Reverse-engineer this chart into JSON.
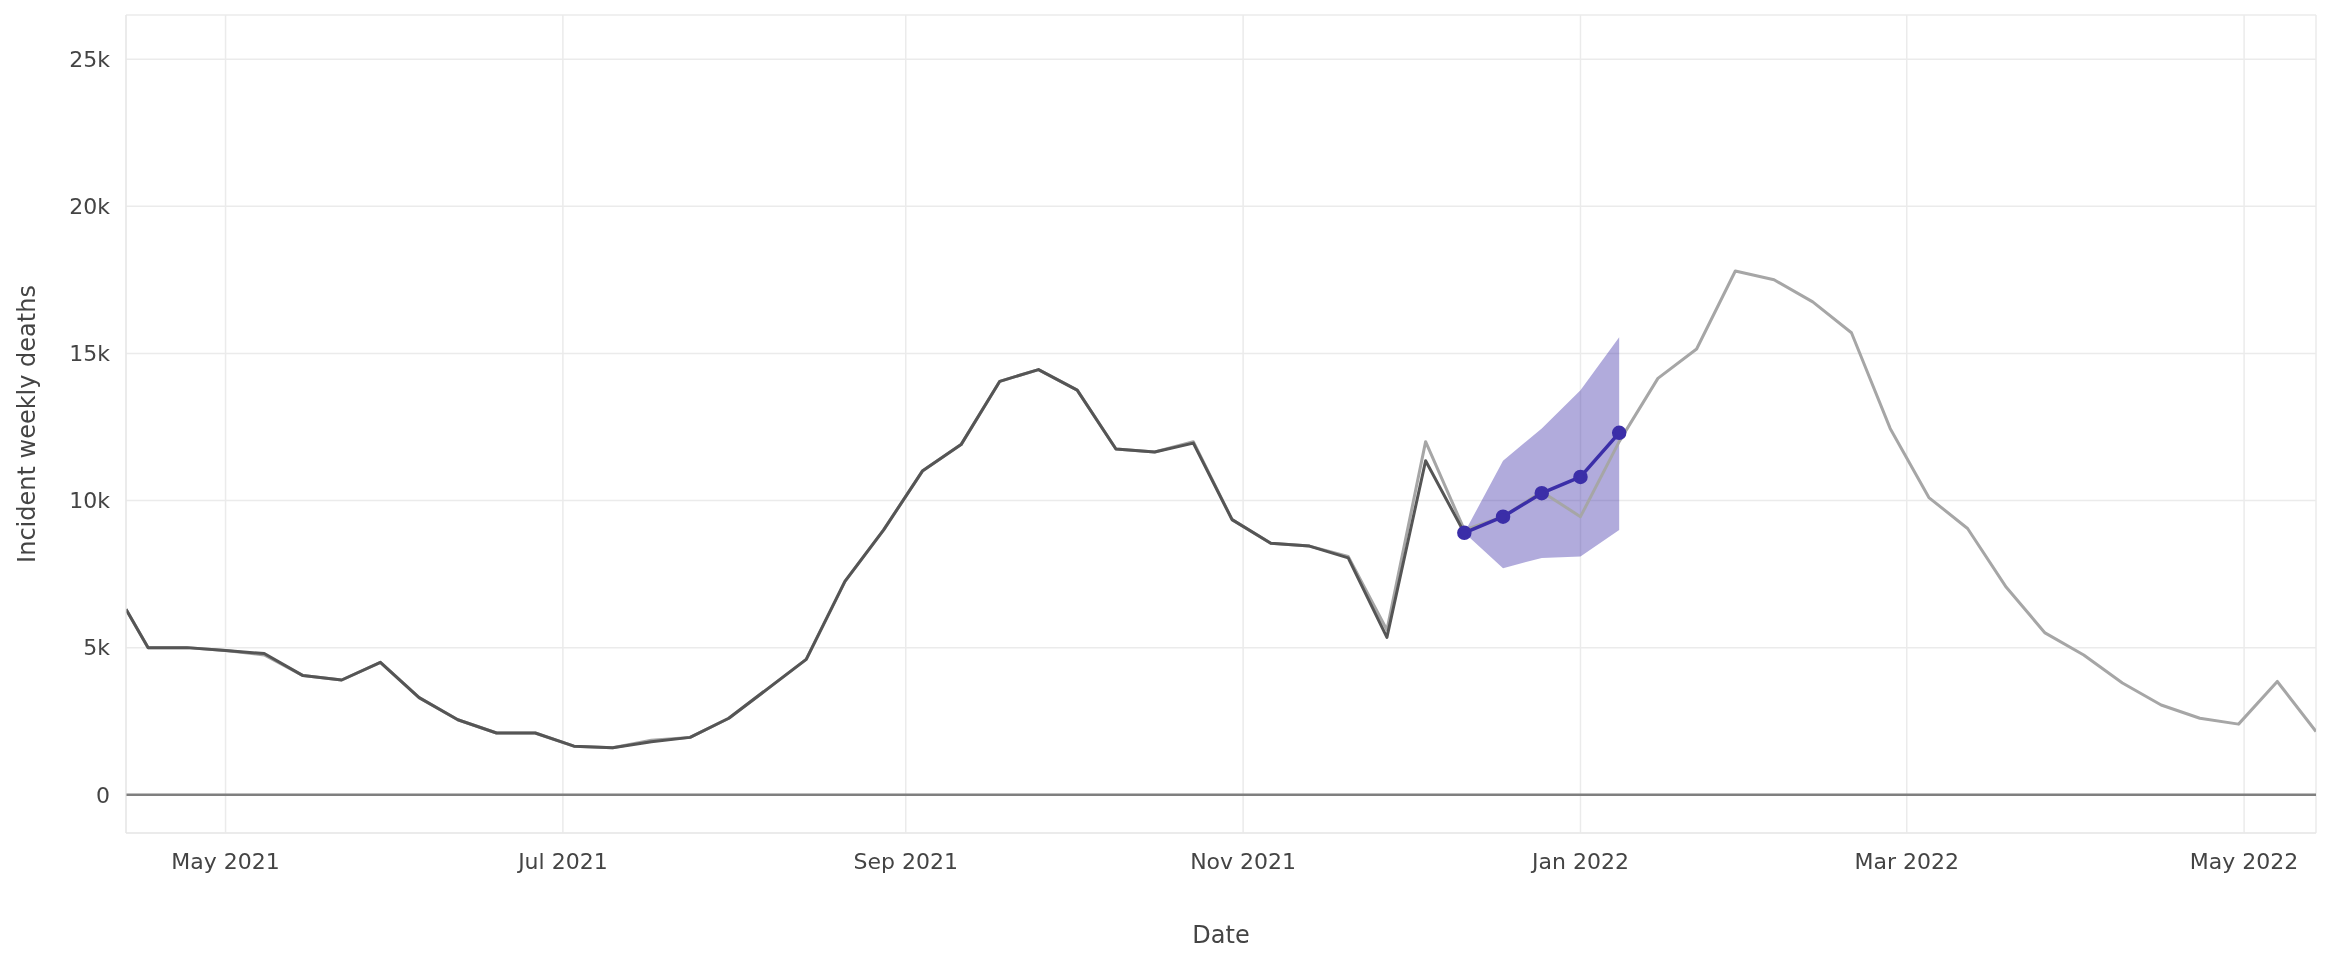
{
  "chart_data": {
    "type": "line",
    "xlabel": "Date",
    "ylabel": "Incident weekly deaths",
    "xlim": [
      "2021-04-13",
      "2022-05-14"
    ],
    "xticks": [
      {
        "value": "2021-05-01",
        "label": "May 2021"
      },
      {
        "value": "2021-07-01",
        "label": "Jul 2021"
      },
      {
        "value": "2021-09-01",
        "label": "Sep 2021"
      },
      {
        "value": "2021-11-01",
        "label": "Nov 2021"
      },
      {
        "value": "2022-01-01",
        "label": "Jan 2022"
      },
      {
        "value": "2022-03-01",
        "label": "Mar 2022"
      },
      {
        "value": "2022-05-01",
        "label": "May 2022"
      }
    ],
    "ylim": [
      -1300,
      26500
    ],
    "yticks": [
      0,
      {
        "value": 5000,
        "label": "5k"
      },
      {
        "value": 10000,
        "label": "10k"
      },
      {
        "value": 15000,
        "label": "15k"
      },
      {
        "value": 20000,
        "label": "20k"
      },
      {
        "value": 25000,
        "label": "25k"
      }
    ],
    "grid": true,
    "ref_lines": [
      {
        "axis": "y",
        "value": 0,
        "color": "#7f7f7f"
      }
    ],
    "series": [
      {
        "color": "#a6a6a6",
        "marker": "none",
        "x": [
          "2021-04-13",
          "2021-04-17",
          "2021-04-24",
          "2021-05-01",
          "2021-05-08",
          "2021-05-15",
          "2021-05-22",
          "2021-05-29",
          "2021-06-05",
          "2021-06-12",
          "2021-06-19",
          "2021-06-26",
          "2021-07-03",
          "2021-07-10",
          "2021-07-17",
          "2021-07-24",
          "2021-07-31",
          "2021-08-07",
          "2021-08-14",
          "2021-08-21",
          "2021-08-28",
          "2021-09-04",
          "2021-09-11",
          "2021-09-18",
          "2021-09-25",
          "2021-10-02",
          "2021-10-09",
          "2021-10-16",
          "2021-10-23",
          "2021-10-30",
          "2021-11-06",
          "2021-11-13",
          "2021-11-20",
          "2021-11-27",
          "2021-12-04",
          "2021-12-11",
          "2021-12-18",
          "2021-12-25",
          "2022-01-01",
          "2022-01-08",
          "2022-01-15",
          "2022-01-22",
          "2022-01-29",
          "2022-02-05",
          "2022-02-12",
          "2022-02-19",
          "2022-02-26",
          "2022-03-05",
          "2022-03-12",
          "2022-03-19",
          "2022-03-26",
          "2022-04-02",
          "2022-04-09",
          "2022-04-16",
          "2022-04-23",
          "2022-04-30",
          "2022-05-07",
          "2022-05-14"
        ],
        "values": [
          6300,
          5000,
          5000,
          4900,
          4750,
          4050,
          3900,
          4500,
          3300,
          2550,
          2100,
          2100,
          1650,
          1600,
          1850,
          1950,
          2600,
          3600,
          4600,
          7250,
          9000,
          11000,
          11900,
          14050,
          14450,
          13750,
          11750,
          11650,
          12000,
          9350,
          8550,
          8450,
          8100,
          5600,
          12000,
          9000,
          9450,
          10300,
          9450,
          12000,
          14150,
          15150,
          17800,
          17500,
          16750,
          15700,
          12450,
          10100,
          9050,
          7050,
          5500,
          4750,
          3800,
          3050,
          2600,
          2400,
          3850,
          2150
        ]
      },
      {
        "color": "#555555",
        "marker": "none",
        "x": [
          "2021-04-13",
          "2021-04-17",
          "2021-04-24",
          "2021-05-01",
          "2021-05-08",
          "2021-05-15",
          "2021-05-22",
          "2021-05-29",
          "2021-06-05",
          "2021-06-12",
          "2021-06-19",
          "2021-06-26",
          "2021-07-03",
          "2021-07-10",
          "2021-07-17",
          "2021-07-24",
          "2021-07-31",
          "2021-08-07",
          "2021-08-14",
          "2021-08-21",
          "2021-08-28",
          "2021-09-04",
          "2021-09-11",
          "2021-09-18",
          "2021-09-25",
          "2021-10-02",
          "2021-10-09",
          "2021-10-16",
          "2021-10-23",
          "2021-10-30",
          "2021-11-06",
          "2021-11-13",
          "2021-11-20",
          "2021-11-27",
          "2021-12-04",
          "2021-12-11"
        ],
        "values": [
          6300,
          5000,
          5000,
          4900,
          4800,
          4050,
          3900,
          4500,
          3300,
          2550,
          2100,
          2100,
          1650,
          1600,
          1800,
          1950,
          2600,
          3600,
          4600,
          7250,
          9000,
          11000,
          11900,
          14050,
          14450,
          13750,
          11750,
          11650,
          11950,
          9350,
          8550,
          8450,
          8050,
          5350,
          11350,
          8900
        ]
      },
      {
        "color": "#3b2ea8",
        "marker": "circle",
        "x": [
          "2021-12-11",
          "2021-12-18",
          "2021-12-25",
          "2022-01-01",
          "2022-01-08"
        ],
        "values": [
          8900,
          9450,
          10250,
          10800,
          12300
        ],
        "lower": [
          8900,
          7700,
          8050,
          8100,
          9000
        ],
        "upper": [
          8900,
          11350,
          12450,
          13750,
          15550
        ]
      }
    ]
  }
}
